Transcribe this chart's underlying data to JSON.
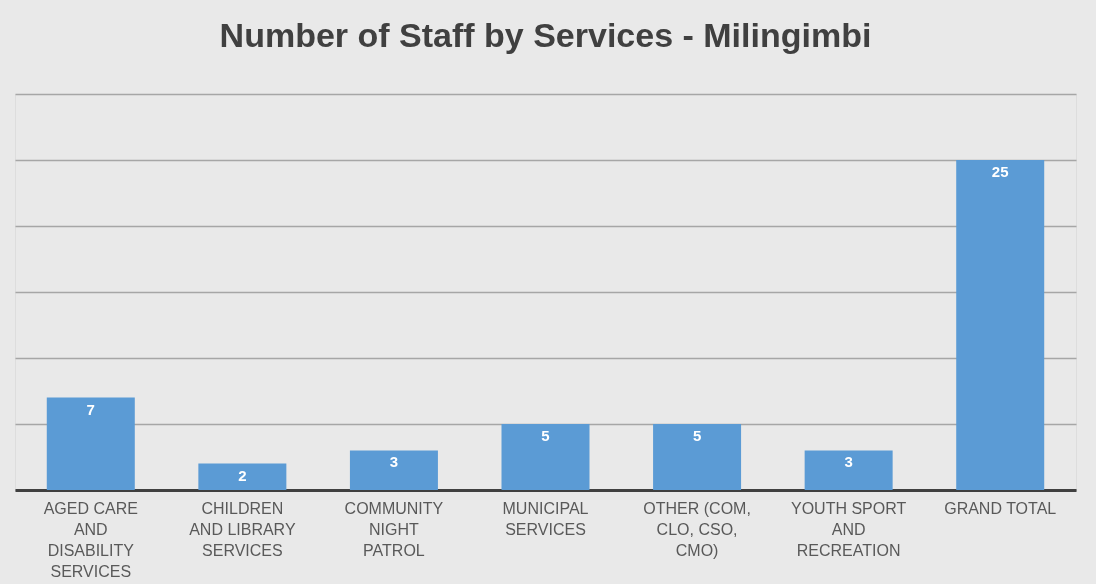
{
  "chart_data": {
    "type": "bar",
    "title": "Number of Staff by Services - Milingimbi",
    "categories": [
      "AGED CARE AND DISABILITY SERVICES",
      "CHILDREN AND LIBRARY SERVICES",
      "COMMUNITY NIGHT PATROL",
      "MUNICIPAL SERVICES",
      "OTHER (COM, CLO, CSO, CMO)",
      "YOUTH SPORT AND RECREATION",
      "GRAND TOTAL"
    ],
    "values": [
      7,
      2,
      3,
      5,
      5,
      3,
      25
    ],
    "color": "#5b9bd5",
    "ylim": [
      0,
      30
    ],
    "yticks": [
      {
        "value": 0,
        "label": null
      },
      {
        "value": 5,
        "label": null
      },
      {
        "value": 10,
        "label": null
      },
      {
        "value": 15,
        "label": null
      },
      {
        "value": 20,
        "label": null
      },
      {
        "value": 25,
        "label": null
      },
      {
        "value": 30,
        "label": null
      }
    ],
    "grid": "y",
    "tick_labels": "x",
    "data_labels": true
  }
}
